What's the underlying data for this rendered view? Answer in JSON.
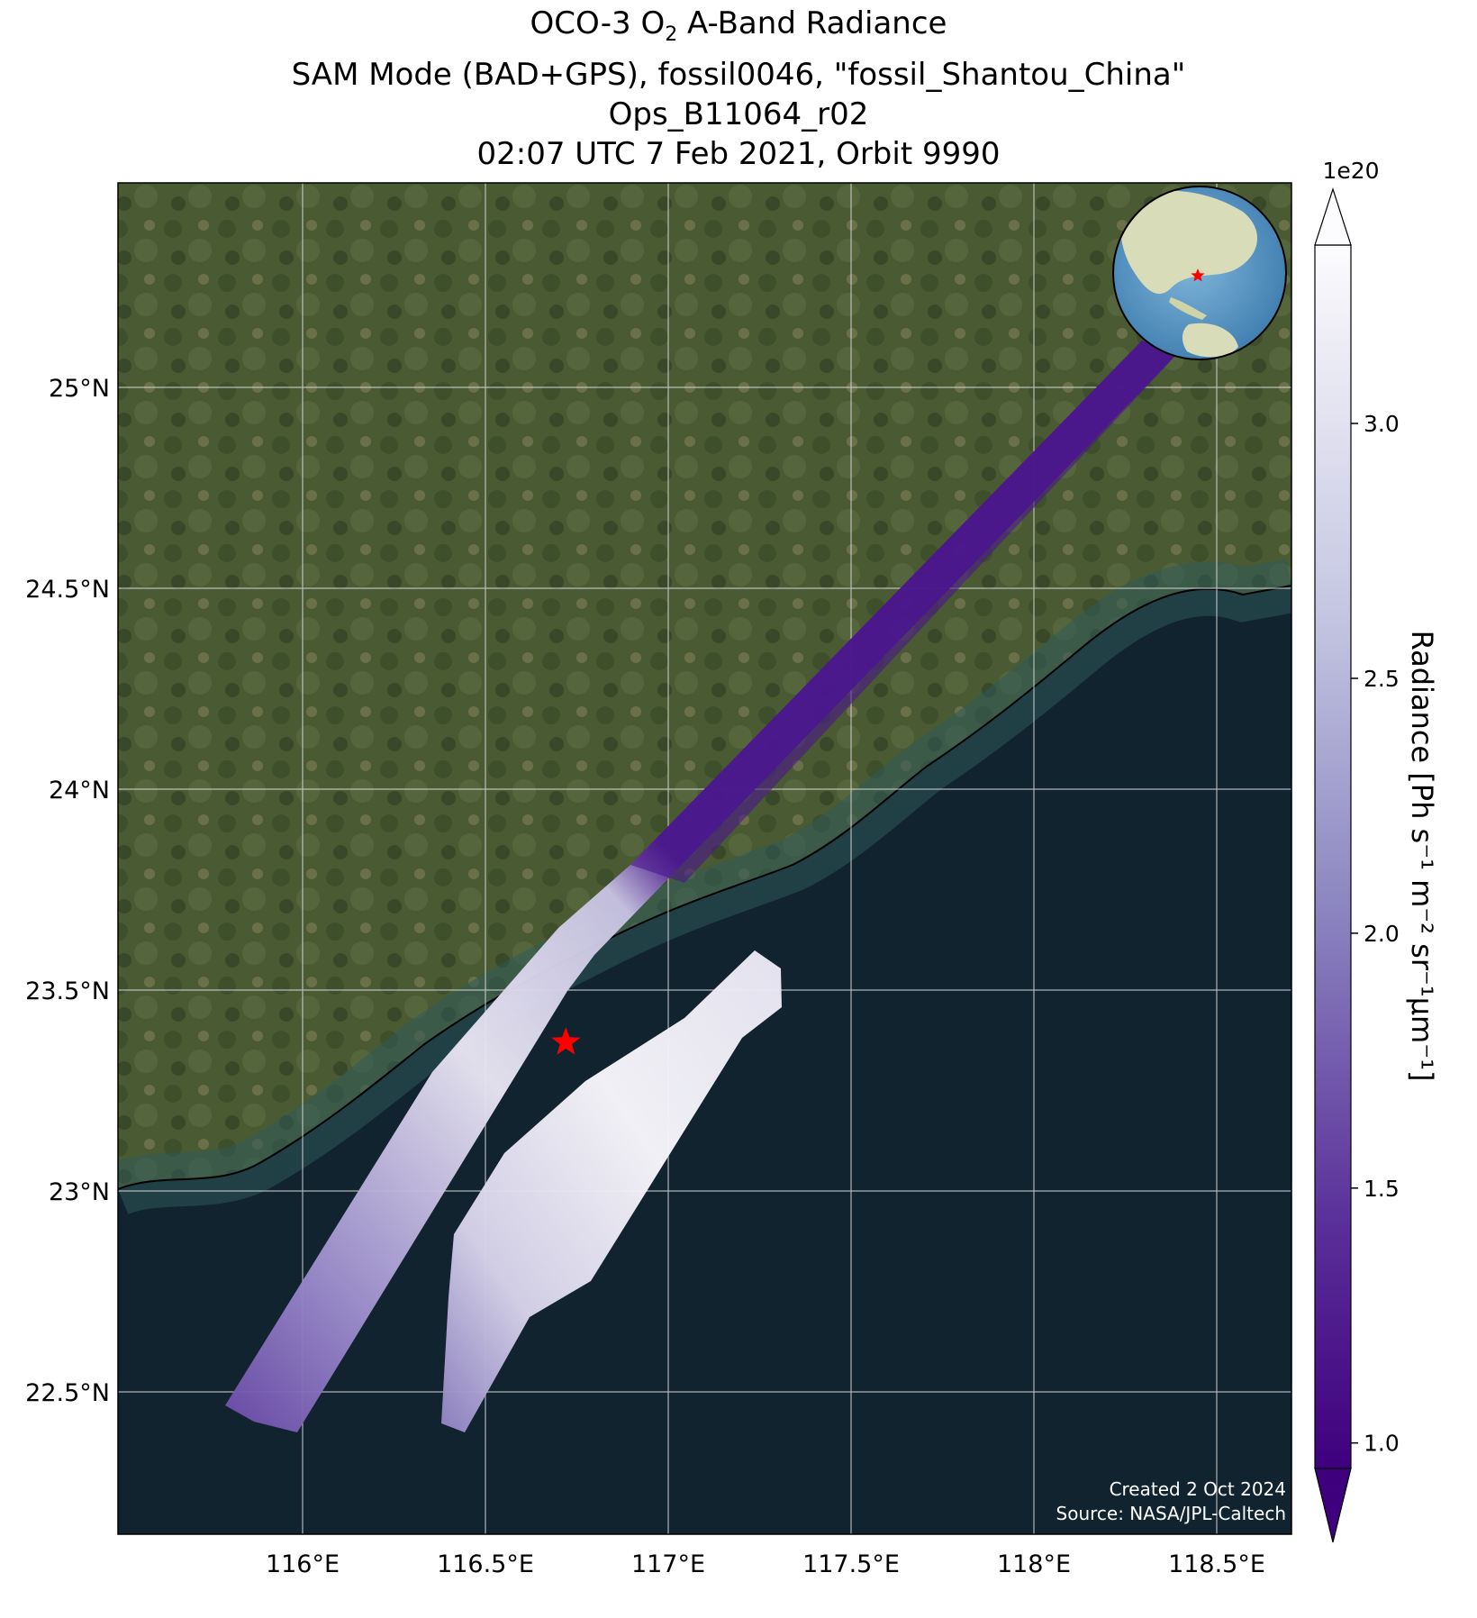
{
  "title": {
    "line1_pre": "OCO-3 O",
    "line1_sub": "2",
    "line1_post": " A-Band Radiance",
    "line2": "SAM Mode (BAD+GPS), fossil0046, \"fossil_Shantou_China\"",
    "line3": "Ops_B11064_r02",
    "line4": "02:07 UTC 7 Feb 2021, Orbit 9990"
  },
  "axes": {
    "lon_ticks": [
      "116°E",
      "116.5°E",
      "117°E",
      "117.5°E",
      "118°E",
      "118.5°E"
    ],
    "lat_ticks": [
      "25°N",
      "24.5°N",
      "24°N",
      "23.5°N",
      "23°N",
      "22.5°N"
    ]
  },
  "colorbar": {
    "label": "Radiance [Ph s⁻¹ m⁻² sr⁻¹μm⁻¹]",
    "multiplier": "1e20",
    "ticks": [
      "3.0",
      "2.5",
      "2.0",
      "1.5",
      "1.0"
    ],
    "colormap": "Purples_r",
    "range": [
      0.95,
      3.35
    ]
  },
  "target_marker": {
    "color": "#ff0000",
    "lon": 116.72,
    "lat": 23.37
  },
  "credit": {
    "line1": "Created 2 Oct 2024",
    "line2": "Source: NASA/JPL-Caltech"
  },
  "colors": {
    "land": "#4a5a34",
    "ocean": "#10232f",
    "track_dark": "#4b1a8f",
    "track_light": "#f4f2f8"
  }
}
